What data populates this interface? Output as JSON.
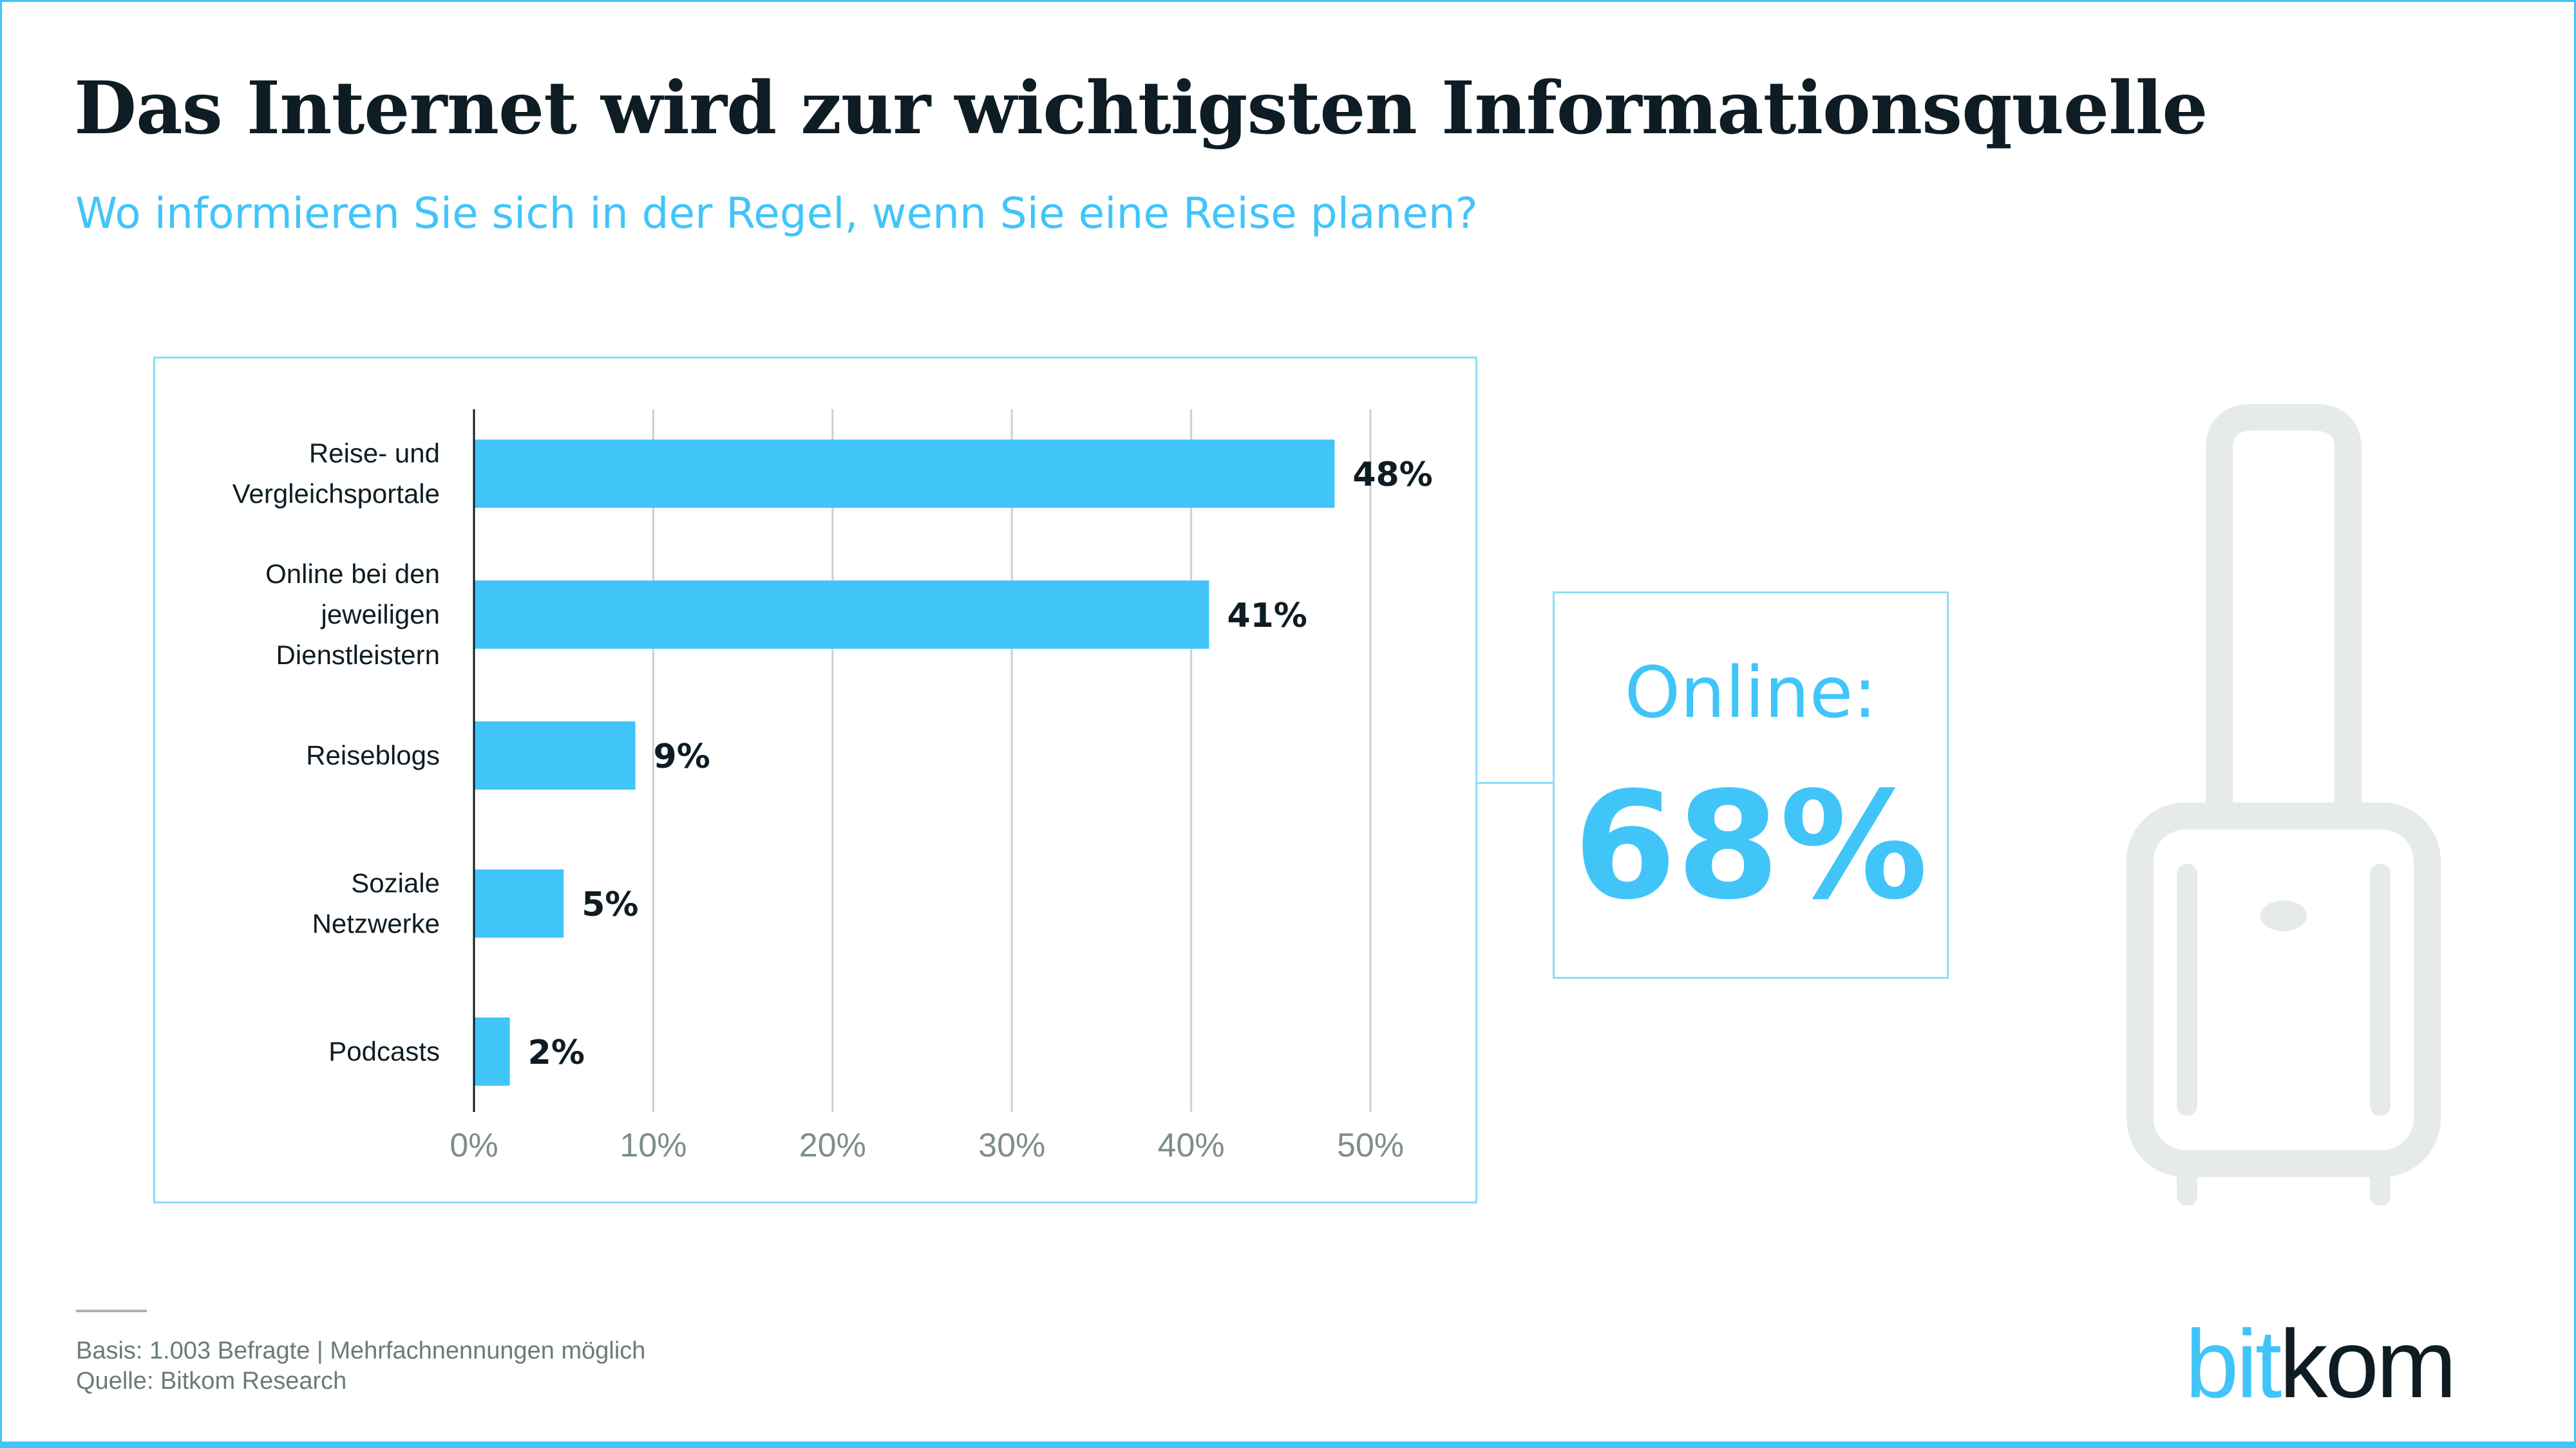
{
  "header": {
    "title": "Das Internet wird zur wichtigsten Informationsquelle",
    "subtitle": "Wo informieren Sie sich in der Regel, wenn Sie eine Reise planen?"
  },
  "chart_data": {
    "type": "bar",
    "orientation": "horizontal",
    "categories": [
      [
        "Reise- und",
        "Vergleichsportale"
      ],
      [
        "Online bei den",
        "jeweiligen",
        "Dienstleistern"
      ],
      [
        "Reiseblogs"
      ],
      [
        "Soziale",
        "Netzwerke"
      ],
      [
        "Podcasts"
      ]
    ],
    "values": [
      48,
      41,
      9,
      5,
      2
    ],
    "data_labels": [
      "48%",
      "41%",
      "9%",
      "5%",
      "2%"
    ],
    "xlim": [
      0,
      50
    ],
    "ticks": [
      0,
      10,
      20,
      30,
      40,
      50
    ],
    "tick_labels": [
      "0%",
      "10%",
      "20%",
      "30%",
      "40%",
      "50%"
    ],
    "grid": "vertical",
    "bar_color": "#41c5f9"
  },
  "callout": {
    "label": "Online:",
    "value": "68%"
  },
  "icon": "suitcase-icon",
  "footer": {
    "basis": "Basis: 1.003 Befragte | Mehrfachnennungen möglich",
    "source": "Quelle: Bitkom Research"
  },
  "logo": {
    "part1": "bit",
    "part2": "kom"
  },
  "colors": {
    "accent": "#41c5f9",
    "text": "#0e1c24",
    "icon": "#e6eaea"
  }
}
